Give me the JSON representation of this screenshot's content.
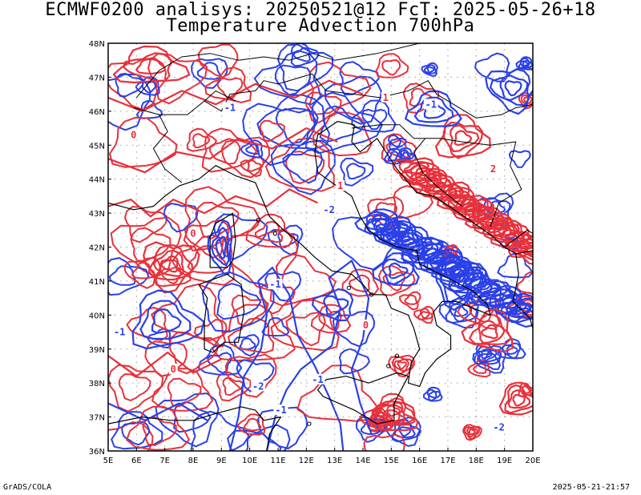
{
  "title_line1": "ECMWF0200 analisys: 20250521@12 FcT: 2025-05-26+18",
  "title_line2": "Temperature Advection 700hPa",
  "footer_left": "GrADS/COLA",
  "footer_right": "2025-05-21-21:57",
  "colors": {
    "positive": "#e8303a",
    "negative": "#2a40e8",
    "coast": "#000000",
    "grid": "#999999"
  },
  "lon_labels": [
    "5E",
    "6E",
    "7E",
    "8E",
    "9E",
    "10E",
    "11E",
    "12E",
    "13E",
    "14E",
    "15E",
    "16E",
    "17E",
    "18E",
    "19E",
    "20E"
  ],
  "lat_labels": [
    "48N",
    "47N",
    "46N",
    "45N",
    "44N",
    "43N",
    "42N",
    "41N",
    "40N",
    "39N",
    "38N",
    "37N",
    "36N"
  ],
  "contour_labels": [
    {
      "text": "-2",
      "lon": 12.8,
      "lat": 43.1
    },
    {
      "text": "-1",
      "lon": 10.9,
      "lat": 40.9
    },
    {
      "text": "-1",
      "lon": 5.4,
      "lat": 39.5
    },
    {
      "text": "-2",
      "lon": 10.3,
      "lat": 37.9
    },
    {
      "text": "-1",
      "lon": 11.1,
      "lat": 37.2
    },
    {
      "text": "-1",
      "lon": 12.4,
      "lat": 38.1
    },
    {
      "text": "0",
      "lon": 5.9,
      "lat": 45.3
    },
    {
      "text": "0",
      "lon": 8.0,
      "lat": 42.4
    },
    {
      "text": "0",
      "lon": 7.3,
      "lat": 38.4
    },
    {
      "text": "1",
      "lon": 14.8,
      "lat": 46.4
    },
    {
      "text": "2",
      "lon": 18.6,
      "lat": 44.3
    },
    {
      "text": "-2",
      "lon": 18.8,
      "lat": 36.7
    },
    {
      "text": "-1",
      "lon": 16.4,
      "lat": 46.2
    },
    {
      "text": "-1",
      "lon": 9.3,
      "lat": 46.1
    },
    {
      "text": "0",
      "lon": 14.1,
      "lat": 39.7
    },
    {
      "text": "1",
      "lon": 13.2,
      "lat": 43.8
    }
  ]
}
